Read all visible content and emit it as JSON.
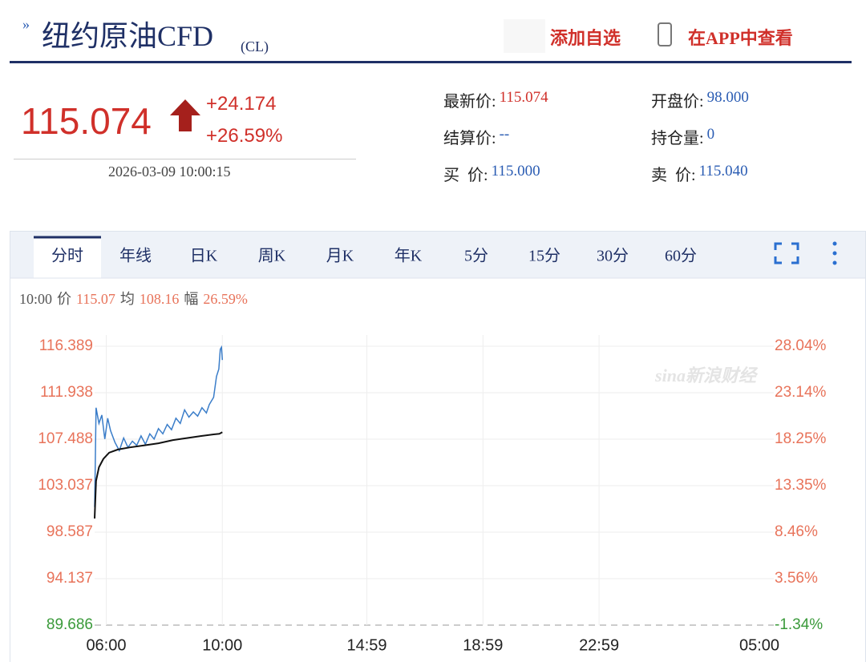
{
  "header": {
    "title": "纽约原油CFD",
    "code": "(CL)",
    "add_watchlist": "添加自选",
    "app_view": "在APP中查看"
  },
  "quote": {
    "price": "115.074",
    "change": "+24.174",
    "change_pct": "+26.59%",
    "time": "2026-03-09 10:00:15",
    "fields": [
      {
        "label": "最新价:",
        "value": "115.074"
      },
      {
        "label": "开盘价:",
        "value": "98.000"
      },
      {
        "label": "结算价:",
        "value": "--"
      },
      {
        "label": "持仓量:",
        "value": "0"
      },
      {
        "label": "买  价:",
        "value": "115.000"
      },
      {
        "label": "卖  价:",
        "value": "115.040"
      }
    ]
  },
  "tabs": [
    "分时",
    "年线",
    "日K",
    "周K",
    "月K",
    "年K",
    "5分",
    "15分",
    "30分",
    "60分"
  ],
  "chart_data": {
    "type": "line",
    "info": {
      "time": "10:00",
      "price_label": "价",
      "price": "115.07",
      "avg_label": "均",
      "avg": "108.16",
      "amp_label": "幅",
      "amp": "26.59%"
    },
    "watermark": "sina新浪财经",
    "xlim": [
      5.6,
      29
    ],
    "xticks": [
      {
        "value": 6,
        "label": "06:00"
      },
      {
        "value": 10,
        "label": "10:00"
      },
      {
        "value": 14.98,
        "label": "14:59"
      },
      {
        "value": 18.98,
        "label": "18:59"
      },
      {
        "value": 22.98,
        "label": "22:59"
      },
      {
        "value": 29,
        "label": "05:00"
      }
    ],
    "ylim": [
      89.686,
      116.389
    ],
    "yticks": [
      116.389,
      111.938,
      107.488,
      103.037,
      98.587,
      94.137,
      89.686
    ],
    "y2lim": [
      -1.34,
      28.04
    ],
    "y2ticks": [
      {
        "value": 28.04,
        "label": "28.04%"
      },
      {
        "value": 23.14,
        "label": "23.14%"
      },
      {
        "value": 18.25,
        "label": "18.25%"
      },
      {
        "value": 13.35,
        "label": "13.35%"
      },
      {
        "value": 8.46,
        "label": "8.46%"
      },
      {
        "value": 3.56,
        "label": "3.56%"
      },
      {
        "value": -1.34,
        "label": "-1.34%"
      }
    ],
    "grid": true,
    "series": [
      {
        "color": "#3a7dc9",
        "x": [
          5.6,
          5.62,
          5.65,
          5.75,
          5.85,
          5.95,
          6.05,
          6.15,
          6.3,
          6.45,
          6.6,
          6.75,
          6.9,
          7.05,
          7.2,
          7.35,
          7.5,
          7.65,
          7.8,
          7.95,
          8.1,
          8.25,
          8.4,
          8.55,
          8.7,
          8.85,
          9.0,
          9.15,
          9.3,
          9.45,
          9.55,
          9.7,
          9.8,
          9.88,
          9.93,
          9.97,
          10.0
        ],
        "values": [
          101.0,
          104.5,
          110.5,
          109.0,
          109.8,
          107.5,
          109.5,
          108.3,
          107.2,
          106.4,
          107.6,
          106.7,
          107.3,
          106.9,
          107.8,
          107.0,
          108.0,
          107.5,
          108.5,
          108.0,
          108.9,
          108.4,
          109.5,
          109.0,
          110.3,
          109.6,
          110.1,
          109.7,
          110.5,
          110.0,
          110.8,
          111.5,
          113.5,
          114.2,
          116.1,
          116.3,
          115.07
        ]
      },
      {
        "color": "#111111",
        "x": [
          5.6,
          5.65,
          5.75,
          5.9,
          6.1,
          6.4,
          6.8,
          7.3,
          7.8,
          8.3,
          8.8,
          9.3,
          9.7,
          9.9,
          10.0
        ],
        "values": [
          99.9,
          103.5,
          104.8,
          105.6,
          106.2,
          106.5,
          106.7,
          106.9,
          107.1,
          107.4,
          107.6,
          107.8,
          107.95,
          108.0,
          108.16
        ]
      }
    ]
  }
}
